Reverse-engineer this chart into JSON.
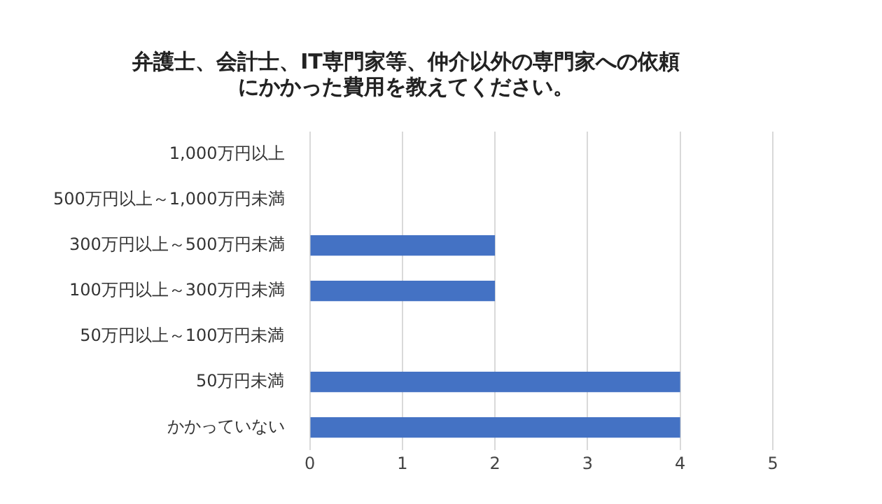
{
  "chart_data": {
    "type": "bar",
    "orientation": "horizontal",
    "title": "弁護士、会計士、IT専門家等、仲介以外の専門家への依頼にかかった費用を教えてください。",
    "categories": [
      "1,000万円以上",
      "500万円以上～1,000万円未満",
      "300万円以上～500万円未満",
      "100万円以上～300万円未満",
      "50万円以上～100万円未満",
      "50万円未満",
      "かかっていない"
    ],
    "values": [
      0,
      0,
      2,
      2,
      0,
      4,
      4
    ],
    "color": "#4472c4",
    "xlim": [
      0,
      5
    ],
    "xticks": [
      0,
      1,
      2,
      3,
      4,
      5
    ],
    "grid": "x",
    "legend": false
  }
}
